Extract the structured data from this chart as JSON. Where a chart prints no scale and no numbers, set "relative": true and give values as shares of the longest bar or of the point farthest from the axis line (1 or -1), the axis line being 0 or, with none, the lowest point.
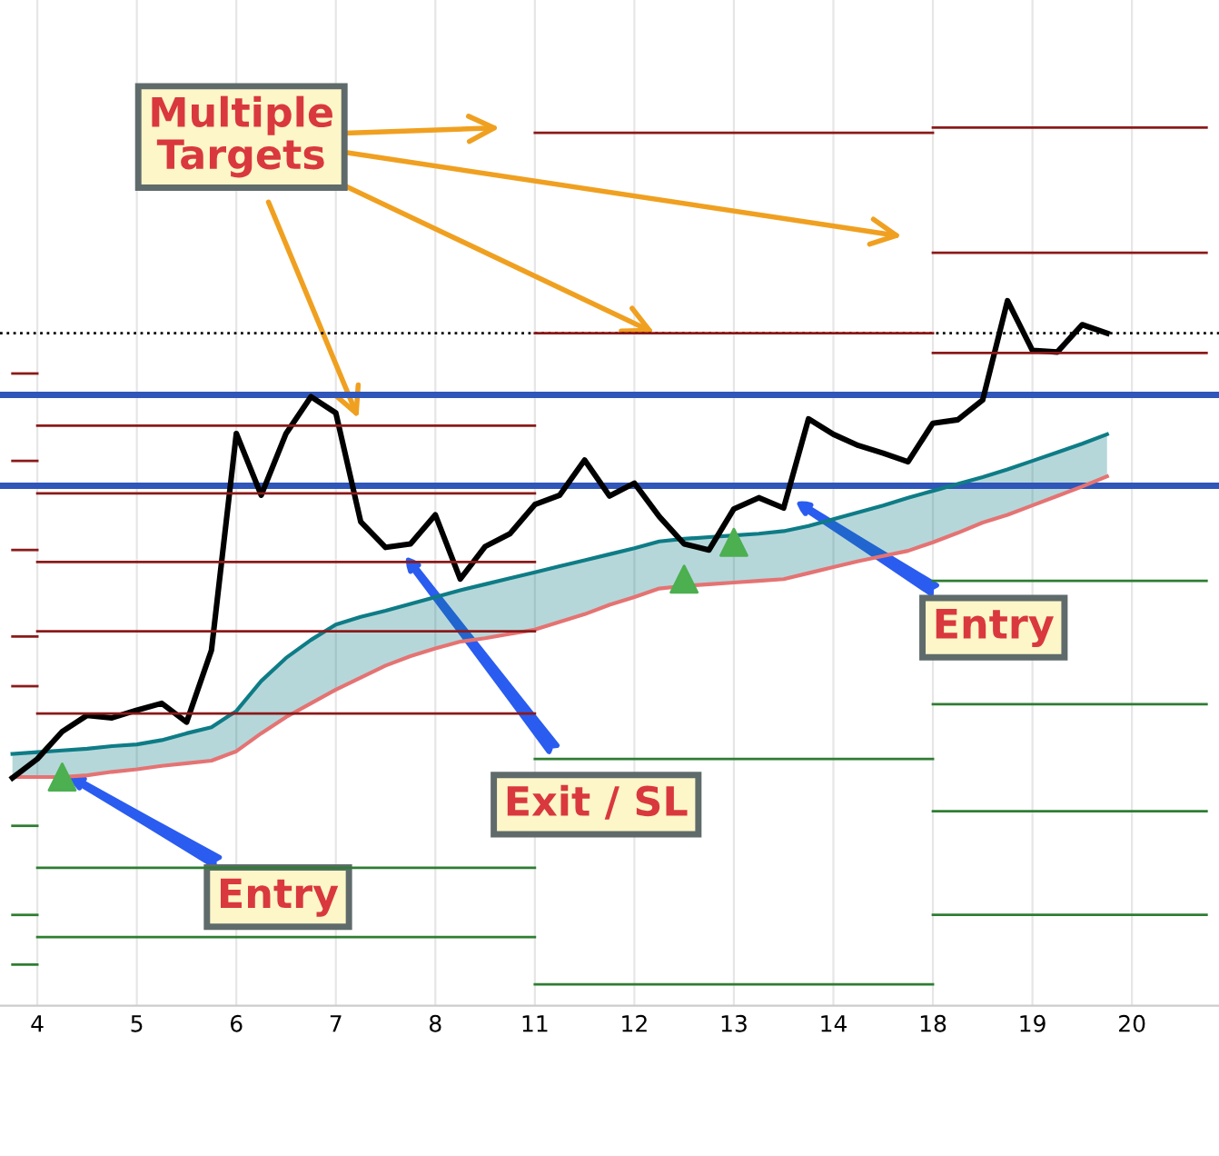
{
  "chart_data": {
    "type": "line",
    "relative": true,
    "grid": "x",
    "legend": false,
    "categories": [
      null,
      "4",
      null,
      null,
      null,
      "5",
      null,
      null,
      null,
      "6",
      null,
      null,
      null,
      "7",
      null,
      null,
      null,
      "8",
      null,
      null,
      null,
      "11",
      null,
      null,
      null,
      "12",
      null,
      null,
      null,
      "13",
      null,
      null,
      null,
      "14",
      null,
      null,
      null,
      "18",
      null,
      null,
      null,
      "19",
      null,
      null,
      null,
      "20",
      null,
      null,
      null
    ],
    "series": [
      {
        "color": "#8b1a1a",
        "values": [
          0.713,
          0.713,
          null,
          null,
          null,
          null,
          null,
          null,
          null,
          null,
          null,
          null,
          null,
          null,
          null,
          null,
          null,
          null,
          null,
          null,
          null,
          null,
          null,
          null,
          null,
          null,
          null,
          null,
          null,
          null,
          null,
          null,
          null,
          null,
          null,
          null,
          null,
          null,
          null,
          null,
          null,
          null,
          null,
          null,
          null,
          null,
          null,
          null,
          null
        ]
      },
      {
        "color": "#8b1a1a",
        "values": [
          0.611,
          0.611,
          null,
          null,
          null,
          null,
          null,
          null,
          null,
          null,
          null,
          null,
          null,
          null,
          null,
          null,
          null,
          null,
          null,
          null,
          null,
          null,
          null,
          null,
          null,
          null,
          null,
          null,
          null,
          null,
          null,
          null,
          null,
          null,
          null,
          null,
          null,
          null,
          null,
          null,
          null,
          null,
          null,
          null,
          null,
          null,
          null,
          null,
          null
        ]
      },
      {
        "color": "#8b1a1a",
        "values": [
          0.507,
          0.507,
          null,
          null,
          null,
          null,
          null,
          null,
          null,
          null,
          null,
          null,
          null,
          null,
          null,
          null,
          null,
          null,
          null,
          null,
          null,
          null,
          null,
          null,
          null,
          null,
          null,
          null,
          null,
          null,
          null,
          null,
          null,
          null,
          null,
          null,
          null,
          null,
          null,
          null,
          null,
          null,
          null,
          null,
          null,
          null,
          null,
          null,
          null
        ]
      },
      {
        "color": "#8b1a1a",
        "values": [
          0.406,
          0.406,
          null,
          null,
          null,
          null,
          null,
          null,
          null,
          null,
          null,
          null,
          null,
          null,
          null,
          null,
          null,
          null,
          null,
          null,
          null,
          null,
          null,
          null,
          null,
          null,
          null,
          null,
          null,
          null,
          null,
          null,
          null,
          null,
          null,
          null,
          null,
          null,
          null,
          null,
          null,
          null,
          null,
          null,
          null,
          null,
          null,
          null,
          null
        ]
      },
      {
        "color": "#8b1a1a",
        "values": [
          0.348,
          0.348,
          null,
          null,
          null,
          null,
          null,
          null,
          null,
          null,
          null,
          null,
          null,
          null,
          null,
          null,
          null,
          null,
          null,
          null,
          null,
          null,
          null,
          null,
          null,
          null,
          null,
          null,
          null,
          null,
          null,
          null,
          null,
          null,
          null,
          null,
          null,
          null,
          null,
          null,
          null,
          null,
          null,
          null,
          null,
          null,
          null,
          null,
          null
        ]
      },
      {
        "color": "#2e7d32",
        "values": [
          0.185,
          0.185,
          null,
          null,
          null,
          null,
          null,
          null,
          null,
          null,
          null,
          null,
          null,
          null,
          null,
          null,
          null,
          null,
          null,
          null,
          null,
          null,
          null,
          null,
          null,
          null,
          null,
          null,
          null,
          null,
          null,
          null,
          null,
          null,
          null,
          null,
          null,
          null,
          null,
          null,
          null,
          null,
          null,
          null,
          null,
          null,
          null,
          null,
          null
        ]
      },
      {
        "color": "#2e7d32",
        "values": [
          0.081,
          0.081,
          null,
          null,
          null,
          null,
          null,
          null,
          null,
          null,
          null,
          null,
          null,
          null,
          null,
          null,
          null,
          null,
          null,
          null,
          null,
          null,
          null,
          null,
          null,
          null,
          null,
          null,
          null,
          null,
          null,
          null,
          null,
          null,
          null,
          null,
          null,
          null,
          null,
          null,
          null,
          null,
          null,
          null,
          null,
          null,
          null,
          null,
          null
        ]
      },
      {
        "color": "#2e7d32",
        "values": [
          0.023,
          0.023,
          null,
          null,
          null,
          null,
          null,
          null,
          null,
          null,
          null,
          null,
          null,
          null,
          null,
          null,
          null,
          null,
          null,
          null,
          null,
          null,
          null,
          null,
          null,
          null,
          null,
          null,
          null,
          null,
          null,
          null,
          null,
          null,
          null,
          null,
          null,
          null,
          null,
          null,
          null,
          null,
          null,
          null,
          null,
          null,
          null,
          null,
          null
        ]
      },
      {
        "color": "#8b1a1a",
        "values": [
          null,
          0.652,
          0.652,
          0.652,
          0.652,
          0.652,
          0.652,
          0.652,
          0.652,
          0.652,
          0.652,
          0.652,
          0.652,
          0.652,
          0.652,
          0.652,
          0.652,
          0.652,
          0.652,
          0.652,
          0.652,
          0.652,
          null,
          null,
          null,
          null,
          null,
          null,
          null,
          null,
          null,
          null,
          null,
          null,
          null,
          null,
          null,
          null,
          null,
          null,
          null,
          null,
          null,
          null,
          null,
          null,
          null,
          null,
          null
        ]
      },
      {
        "color": "#8b1a1a",
        "values": [
          null,
          0.573,
          0.573,
          0.573,
          0.573,
          0.573,
          0.573,
          0.573,
          0.573,
          0.573,
          0.573,
          0.573,
          0.573,
          0.573,
          0.573,
          0.573,
          0.573,
          0.573,
          0.573,
          0.573,
          0.573,
          0.573,
          null,
          null,
          null,
          null,
          null,
          null,
          null,
          null,
          null,
          null,
          null,
          null,
          null,
          null,
          null,
          null,
          null,
          null,
          null,
          null,
          null,
          null,
          null,
          null,
          null,
          null,
          null
        ]
      },
      {
        "color": "#8b1a1a",
        "values": [
          null,
          0.493,
          0.493,
          0.493,
          0.493,
          0.493,
          0.493,
          0.493,
          0.493,
          0.493,
          0.493,
          0.493,
          0.493,
          0.493,
          0.493,
          0.493,
          0.493,
          0.493,
          0.493,
          0.493,
          0.493,
          0.493,
          null,
          null,
          null,
          null,
          null,
          null,
          null,
          null,
          null,
          null,
          null,
          null,
          null,
          null,
          null,
          null,
          null,
          null,
          null,
          null,
          null,
          null,
          null,
          null,
          null,
          null,
          null
        ]
      },
      {
        "color": "#8b1a1a",
        "values": [
          null,
          0.412,
          0.412,
          0.412,
          0.412,
          0.412,
          0.412,
          0.412,
          0.412,
          0.412,
          0.412,
          0.412,
          0.412,
          0.412,
          0.412,
          0.412,
          0.412,
          0.412,
          0.412,
          0.412,
          0.412,
          0.412,
          null,
          null,
          null,
          null,
          null,
          null,
          null,
          null,
          null,
          null,
          null,
          null,
          null,
          null,
          null,
          null,
          null,
          null,
          null,
          null,
          null,
          null,
          null,
          null,
          null,
          null,
          null
        ]
      },
      {
        "color": "#8b1a1a",
        "values": [
          null,
          0.316,
          0.316,
          0.316,
          0.316,
          0.316,
          0.316,
          0.316,
          0.316,
          0.316,
          0.316,
          0.316,
          0.316,
          0.316,
          0.316,
          0.316,
          0.316,
          0.316,
          0.316,
          0.316,
          0.316,
          0.316,
          null,
          null,
          null,
          null,
          null,
          null,
          null,
          null,
          null,
          null,
          null,
          null,
          null,
          null,
          null,
          null,
          null,
          null,
          null,
          null,
          null,
          null,
          null,
          null,
          null,
          null,
          null
        ]
      },
      {
        "color": "#2e7d32",
        "values": [
          null,
          0.136,
          0.136,
          0.136,
          0.136,
          0.136,
          0.136,
          0.136,
          0.136,
          0.136,
          0.136,
          0.136,
          0.136,
          0.136,
          0.136,
          0.136,
          0.136,
          0.136,
          0.136,
          0.136,
          0.136,
          0.136,
          null,
          null,
          null,
          null,
          null,
          null,
          null,
          null,
          null,
          null,
          null,
          null,
          null,
          null,
          null,
          null,
          null,
          null,
          null,
          null,
          null,
          null,
          null,
          null,
          null,
          null,
          null
        ]
      },
      {
        "color": "#2e7d32",
        "values": [
          null,
          0.055,
          0.055,
          0.055,
          0.055,
          0.055,
          0.055,
          0.055,
          0.055,
          0.055,
          0.055,
          0.055,
          0.055,
          0.055,
          0.055,
          0.055,
          0.055,
          0.055,
          0.055,
          0.055,
          0.055,
          0.055,
          null,
          null,
          null,
          null,
          null,
          null,
          null,
          null,
          null,
          null,
          null,
          null,
          null,
          null,
          null,
          null,
          null,
          null,
          null,
          null,
          null,
          null,
          null,
          null,
          null,
          null,
          null
        ]
      },
      {
        "color": "#8b1a1a",
        "values": [
          null,
          null,
          null,
          null,
          null,
          null,
          null,
          null,
          null,
          null,
          null,
          null,
          null,
          null,
          null,
          null,
          null,
          null,
          null,
          null,
          null,
          0.994,
          0.994,
          0.994,
          0.994,
          0.994,
          0.994,
          0.994,
          0.994,
          0.994,
          0.994,
          0.994,
          0.994,
          0.994,
          0.994,
          0.994,
          0.994,
          0.994,
          null,
          null,
          null,
          null,
          null,
          null,
          null,
          null,
          null,
          null,
          null
        ]
      },
      {
        "color": "#8b1a1a",
        "values": [
          null,
          null,
          null,
          null,
          null,
          null,
          null,
          null,
          null,
          null,
          null,
          null,
          null,
          null,
          null,
          null,
          null,
          null,
          null,
          null,
          null,
          0.76,
          0.76,
          0.76,
          0.76,
          0.76,
          0.76,
          0.76,
          0.76,
          0.76,
          0.76,
          0.76,
          0.76,
          0.76,
          0.76,
          0.76,
          0.76,
          0.76,
          null,
          null,
          null,
          null,
          null,
          null,
          null,
          null,
          null,
          null,
          null
        ]
      },
      {
        "color": "#2e7d32",
        "values": [
          null,
          null,
          null,
          null,
          null,
          null,
          null,
          null,
          null,
          null,
          null,
          null,
          null,
          null,
          null,
          null,
          null,
          null,
          null,
          null,
          null,
          0.263,
          0.263,
          0.263,
          0.263,
          0.263,
          0.263,
          0.263,
          0.263,
          0.263,
          0.263,
          0.263,
          0.263,
          0.263,
          0.263,
          0.263,
          0.263,
          0.263,
          null,
          null,
          null,
          null,
          null,
          null,
          null,
          null,
          null,
          null,
          null
        ]
      },
      {
        "color": "#2e7d32",
        "values": [
          null,
          null,
          null,
          null,
          null,
          null,
          null,
          null,
          null,
          null,
          null,
          null,
          null,
          null,
          null,
          null,
          null,
          null,
          null,
          null,
          null,
          0,
          0,
          0,
          0,
          0,
          0,
          0,
          0,
          0,
          0,
          0,
          0,
          0,
          0,
          0,
          0,
          0,
          null,
          null,
          null,
          null,
          null,
          null,
          null,
          null,
          null,
          null,
          null
        ]
      },
      {
        "color": "#8b1a1a",
        "values": [
          null,
          null,
          null,
          null,
          null,
          null,
          null,
          null,
          null,
          null,
          null,
          null,
          null,
          null,
          null,
          null,
          null,
          null,
          null,
          null,
          null,
          null,
          null,
          null,
          null,
          null,
          null,
          null,
          null,
          null,
          null,
          null,
          null,
          null,
          null,
          null,
          null,
          1,
          1,
          1,
          1,
          1,
          1,
          1,
          1,
          1,
          1,
          1,
          1
        ]
      },
      {
        "color": "#8b1a1a",
        "values": [
          null,
          null,
          null,
          null,
          null,
          null,
          null,
          null,
          null,
          null,
          null,
          null,
          null,
          null,
          null,
          null,
          null,
          null,
          null,
          null,
          null,
          null,
          null,
          null,
          null,
          null,
          null,
          null,
          null,
          null,
          null,
          null,
          null,
          null,
          null,
          null,
          null,
          0.854,
          0.854,
          0.854,
          0.854,
          0.854,
          0.854,
          0.854,
          0.854,
          0.854,
          0.854,
          0.854,
          0.854
        ]
      },
      {
        "color": "#8b1a1a",
        "values": [
          null,
          null,
          null,
          null,
          null,
          null,
          null,
          null,
          null,
          null,
          null,
          null,
          null,
          null,
          null,
          null,
          null,
          null,
          null,
          null,
          null,
          null,
          null,
          null,
          null,
          null,
          null,
          null,
          null,
          null,
          null,
          null,
          null,
          null,
          null,
          null,
          null,
          0.737,
          0.737,
          0.737,
          0.737,
          0.737,
          0.737,
          0.737,
          0.737,
          0.737,
          0.737,
          0.737,
          0.737
        ]
      },
      {
        "color": "#2e7d32",
        "values": [
          null,
          null,
          null,
          null,
          null,
          null,
          null,
          null,
          null,
          null,
          null,
          null,
          null,
          null,
          null,
          null,
          null,
          null,
          null,
          null,
          null,
          null,
          null,
          null,
          null,
          null,
          null,
          null,
          null,
          null,
          null,
          null,
          null,
          null,
          null,
          null,
          null,
          0.471,
          0.471,
          0.471,
          0.471,
          0.471,
          0.471,
          0.471,
          0.471,
          0.471,
          0.471,
          0.471,
          0.471
        ]
      },
      {
        "color": "#2e7d32",
        "values": [
          null,
          null,
          null,
          null,
          null,
          null,
          null,
          null,
          null,
          null,
          null,
          null,
          null,
          null,
          null,
          null,
          null,
          null,
          null,
          null,
          null,
          null,
          null,
          null,
          null,
          null,
          null,
          null,
          null,
          null,
          null,
          null,
          null,
          null,
          null,
          null,
          null,
          0.327,
          0.327,
          0.327,
          0.327,
          0.327,
          0.327,
          0.327,
          0.327,
          0.327,
          0.327,
          0.327,
          0.327
        ]
      },
      {
        "color": "#2e7d32",
        "values": [
          null,
          null,
          null,
          null,
          null,
          null,
          null,
          null,
          null,
          null,
          null,
          null,
          null,
          null,
          null,
          null,
          null,
          null,
          null,
          null,
          null,
          null,
          null,
          null,
          null,
          null,
          null,
          null,
          null,
          null,
          null,
          null,
          null,
          null,
          null,
          null,
          null,
          0.202,
          0.202,
          0.202,
          0.202,
          0.202,
          0.202,
          0.202,
          0.202,
          0.202,
          0.202,
          0.202,
          0.202
        ]
      },
      {
        "color": "#2e7d32",
        "values": [
          null,
          null,
          null,
          null,
          null,
          null,
          null,
          null,
          null,
          null,
          null,
          null,
          null,
          null,
          null,
          null,
          null,
          null,
          null,
          null,
          null,
          null,
          null,
          null,
          null,
          null,
          null,
          null,
          null,
          null,
          null,
          null,
          null,
          null,
          null,
          null,
          null,
          0.081,
          0.081,
          0.081,
          0.081,
          0.081,
          0.081,
          0.081,
          0.081,
          0.081,
          0.081,
          0.081,
          0.081
        ]
      },
      {
        "color": "#0e7c86",
        "values": [
          0.269,
          0.271,
          0.273,
          0.275,
          0.278,
          0.28,
          0.285,
          0.293,
          0.3,
          0.319,
          0.354,
          0.381,
          0.402,
          0.42,
          0.429,
          0.436,
          0.444,
          0.452,
          0.46,
          0.467,
          0.474,
          0.481,
          0.488,
          0.495,
          0.502,
          0.509,
          0.517,
          0.52,
          0.522,
          0.524,
          0.526,
          0.529,
          0.535,
          0.543,
          0.551,
          0.559,
          0.568,
          0.576,
          0.584,
          0.592,
          0.601,
          0.611,
          0.621,
          0.631,
          0.642,
          null,
          null,
          null,
          null
        ],
        "lower": [
          0.242,
          0.242,
          0.242,
          0.244,
          0.248,
          0.251,
          0.255,
          0.258,
          0.261,
          0.272,
          0.293,
          0.312,
          0.328,
          0.344,
          0.358,
          0.372,
          0.383,
          0.392,
          0.4,
          0.404,
          0.409,
          0.414,
          0.423,
          0.432,
          0.443,
          0.452,
          0.462,
          0.465,
          0.467,
          0.469,
          0.471,
          0.473,
          0.48,
          0.487,
          0.494,
          0.5,
          0.506,
          0.516,
          0.527,
          0.539,
          0.548,
          0.559,
          0.57,
          0.581,
          0.593,
          null,
          null,
          null,
          null
        ],
        "upper": [
          0.269,
          0.271,
          0.273,
          0.275,
          0.278,
          0.28,
          0.285,
          0.293,
          0.3,
          0.319,
          0.354,
          0.381,
          0.402,
          0.42,
          0.429,
          0.436,
          0.444,
          0.452,
          0.46,
          0.467,
          0.474,
          0.481,
          0.488,
          0.495,
          0.502,
          0.509,
          0.517,
          0.52,
          0.522,
          0.524,
          0.526,
          0.529,
          0.535,
          0.543,
          0.551,
          0.559,
          0.568,
          0.576,
          0.584,
          0.592,
          0.601,
          0.611,
          0.621,
          0.631,
          0.642,
          null,
          null,
          null,
          null
        ]
      },
      {
        "color": "#e57373",
        "values": [
          0.242,
          0.242,
          0.242,
          0.244,
          0.248,
          0.251,
          0.255,
          0.258,
          0.261,
          0.272,
          0.293,
          0.312,
          0.328,
          0.344,
          0.358,
          0.372,
          0.383,
          0.392,
          0.4,
          0.404,
          0.409,
          0.414,
          0.423,
          0.432,
          0.443,
          0.452,
          0.462,
          0.465,
          0.467,
          0.469,
          0.471,
          0.473,
          0.48,
          0.487,
          0.494,
          0.5,
          0.506,
          0.516,
          0.527,
          0.539,
          0.548,
          0.559,
          0.57,
          0.581,
          0.593,
          null,
          null,
          null,
          null
        ]
      },
      {
        "color": "#000000",
        "values": [
          0.241,
          0.263,
          0.295,
          0.314,
          0.311,
          0.32,
          0.328,
          0.306,
          0.39,
          0.643,
          0.571,
          0.643,
          0.686,
          0.667,
          0.54,
          0.51,
          0.514,
          0.548,
          0.473,
          0.511,
          0.526,
          0.56,
          0.571,
          0.612,
          0.57,
          0.585,
          0.546,
          0.514,
          0.507,
          0.555,
          0.568,
          0.556,
          0.66,
          0.642,
          0.629,
          0.62,
          0.61,
          0.655,
          0.659,
          0.682,
          0.798,
          0.74,
          0.738,
          0.77,
          0.76,
          null,
          null,
          null,
          null
        ]
      },
      {
        "type": "scatter",
        "color": "#4caf50",
        "marker": "triangle",
        "values": [
          null,
          null,
          0.242,
          null,
          null,
          null,
          null,
          null,
          null,
          null,
          null,
          null,
          null,
          null,
          null,
          null,
          null,
          null,
          null,
          null,
          null,
          null,
          null,
          null,
          null,
          null,
          null,
          0.473,
          null,
          0.516,
          null,
          null,
          null,
          null,
          null,
          null,
          null,
          null,
          null,
          null,
          null,
          null,
          null,
          null,
          null,
          null,
          null,
          null,
          null
        ]
      }
    ],
    "ref_lines": [
      {
        "axis": "y",
        "value": 0.688,
        "color": "#2f56b8",
        "line_style": "solid"
      },
      {
        "axis": "y",
        "value": 0.582,
        "color": "#2f56b8",
        "line_style": "solid"
      },
      {
        "axis": "y",
        "value": 0.76,
        "color": "#000000",
        "line_style": "dotted"
      }
    ],
    "annotations": [
      "Multiple Targets",
      "Exit / SL",
      "Entry",
      "Entry"
    ]
  }
}
